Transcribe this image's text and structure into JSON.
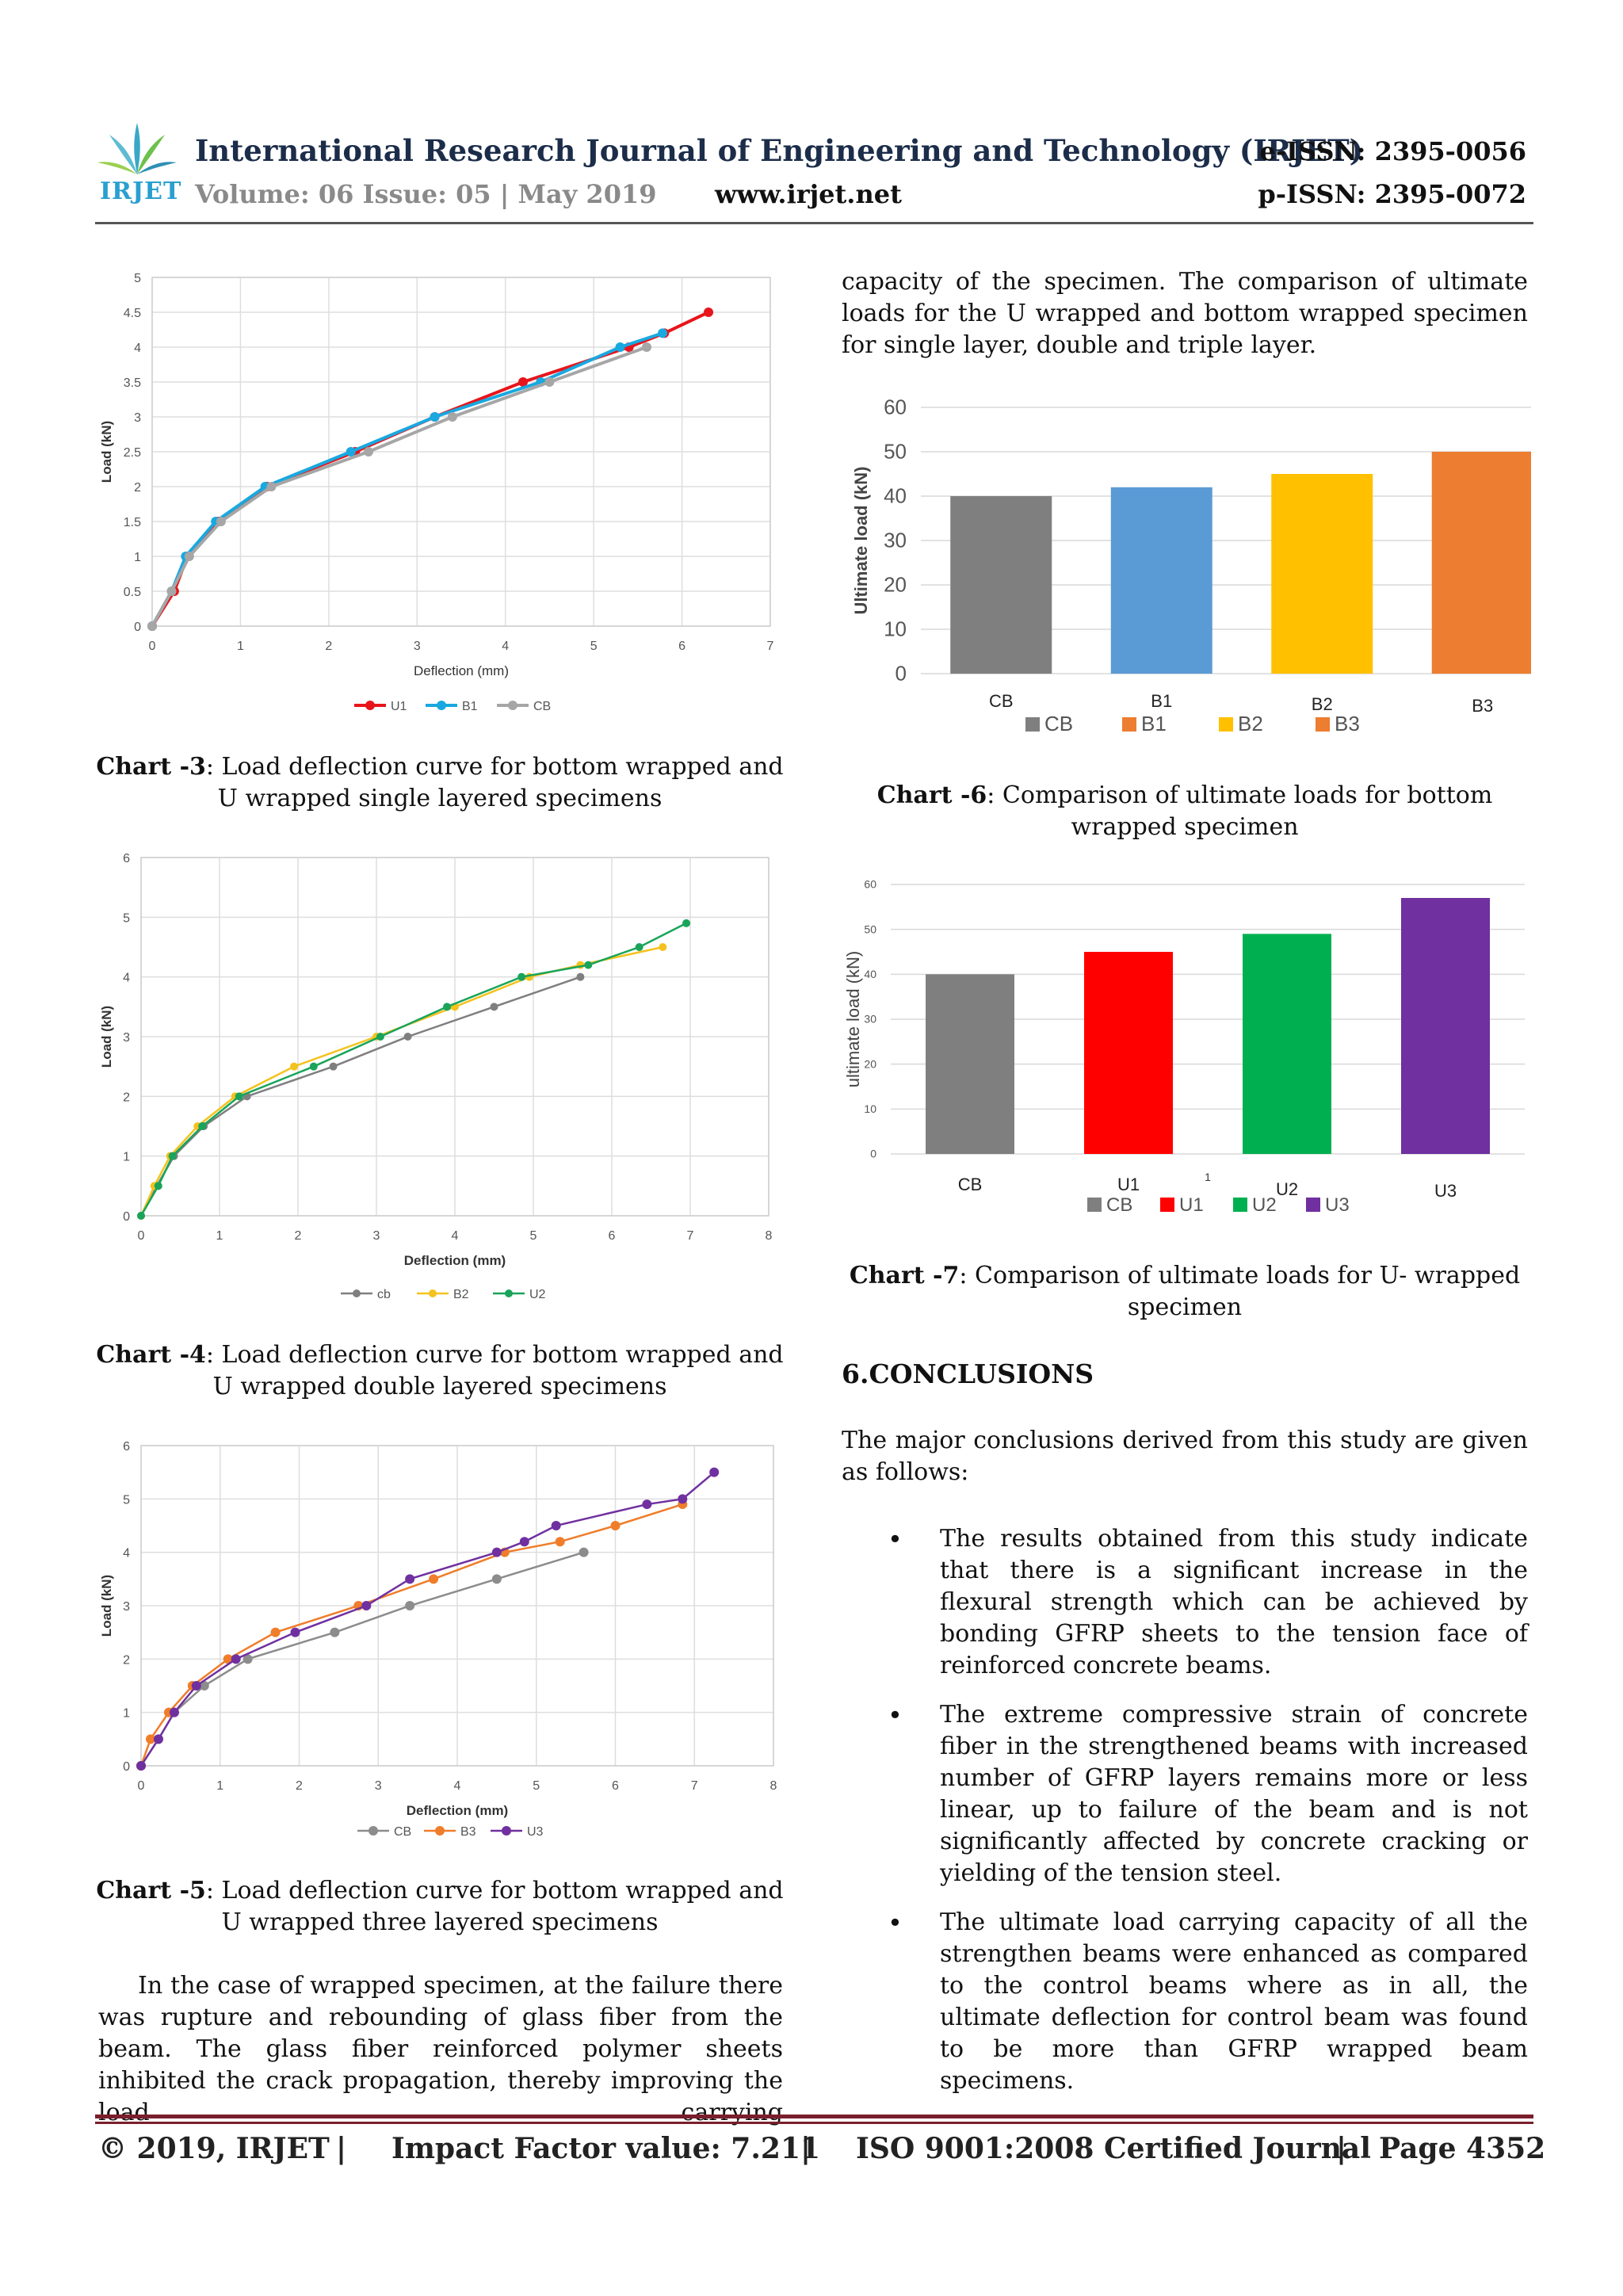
{
  "header": {
    "logo_text": "IRJET",
    "journal_title": "International Research Journal of Engineering and Technology (IRJET)",
    "volume": "Volume: 06 Issue: 05 | May 2019",
    "website": "www.irjet.net",
    "eissn": "e-ISSN: 2395-0056",
    "pissn": "p-ISSN: 2395-0072"
  },
  "captions": {
    "chart3_label": "Chart -3",
    "chart3_text": ": Load deflection curve for bottom wrapped and U wrapped single layered specimens",
    "chart4_label": "Chart -4",
    "chart4_text": ": Load deflection curve for bottom wrapped and U wrapped double layered specimens",
    "chart5_label": "Chart -5",
    "chart5_text": ": Load deflection curve for bottom wrapped and U wrapped three layered specimens",
    "chart6_label": "Chart -6",
    "chart6_text": ": Comparison of ultimate loads for bottom wrapped specimen",
    "chart7_label": "Chart -7",
    "chart7_text": ": Comparison of ultimate loads for U- wrapped specimen"
  },
  "body": {
    "left_para": "In the case of wrapped specimen, at the failure there was rupture and rebounding of glass fiber from the beam. The glass fiber reinforced polymer sheets inhibited the crack propagation, thereby improving the load carrying",
    "right_para": "capacity of the specimen. The comparison of ultimate loads for the U wrapped and bottom wrapped specimen for single layer, double and triple layer.",
    "section_title": "6.CONCLUSIONS",
    "conclusions_intro": "The major conclusions derived from this study are given as follows:",
    "bullets": [
      "The results obtained from this study indicate that there is a significant increase in the flexural strength which can be achieved by bonding GFRP sheets to the tension face of reinforced concrete beams.",
      "The extreme compressive strain of concrete fiber in the strengthened beams with increased number of GFRP layers remains more or less linear, up to failure of the beam and is not significantly affected by concrete cracking or yielding of the tension steel.",
      "The ultimate load carrying capacity of all the strengthen beams were enhanced as compared to the control beams where as in all, the ultimate deflection for control beam was found to be more than GFRP wrapped beam specimens."
    ]
  },
  "footer": {
    "copyright": "© 2019, IRJET",
    "sep1": "|",
    "impact": "Impact Factor value: 7.211",
    "sep2": "|",
    "iso": "ISO 9001:2008 Certified Journal",
    "sep3": "|",
    "page": "Page 4352"
  },
  "chart_data": [
    {
      "id": "chart3",
      "type": "line",
      "xlabel": "Deflection (mm)",
      "ylabel": "Load (kN)",
      "xlim": [
        0,
        7
      ],
      "ylim": [
        0,
        5
      ],
      "xticks": [
        "0",
        "1",
        "2",
        "3",
        "4",
        "5",
        "6",
        "7"
      ],
      "yticks": [
        "0",
        "0.5",
        "1",
        "1.5",
        "2",
        "2.5",
        "3",
        "3.5",
        "4",
        "4.5",
        "5"
      ],
      "grid": true,
      "legend_position": "bottom",
      "series": [
        {
          "name": "U1",
          "color": "#e8141b",
          "points": [
            [
              0,
              0
            ],
            [
              0.25,
              0.5
            ],
            [
              0.4,
              1
            ],
            [
              0.75,
              1.5
            ],
            [
              1.3,
              2
            ],
            [
              2.3,
              2.5
            ],
            [
              3.2,
              3
            ],
            [
              4.2,
              3.5
            ],
            [
              5.4,
              4
            ],
            [
              5.8,
              4.2
            ],
            [
              6.3,
              4.5
            ]
          ]
        },
        {
          "name": "B1",
          "color": "#19a8e0",
          "points": [
            [
              0,
              0
            ],
            [
              0.22,
              0.5
            ],
            [
              0.38,
              1
            ],
            [
              0.72,
              1.5
            ],
            [
              1.28,
              2
            ],
            [
              2.25,
              2.5
            ],
            [
              3.2,
              3
            ],
            [
              4.4,
              3.5
            ],
            [
              5.3,
              4
            ],
            [
              5.78,
              4.2
            ]
          ]
        },
        {
          "name": "CB",
          "color": "#a6a6a6",
          "points": [
            [
              0,
              0
            ],
            [
              0.22,
              0.5
            ],
            [
              0.42,
              1
            ],
            [
              0.78,
              1.5
            ],
            [
              1.35,
              2
            ],
            [
              2.45,
              2.5
            ],
            [
              3.4,
              3
            ],
            [
              4.5,
              3.5
            ],
            [
              5.6,
              4
            ]
          ]
        }
      ]
    },
    {
      "id": "chart4",
      "type": "line",
      "xlabel": "Deflection (mm)",
      "ylabel": "Load (kN)",
      "xlim": [
        0,
        8
      ],
      "ylim": [
        0,
        6
      ],
      "xticks": [
        "0",
        "1",
        "2",
        "3",
        "4",
        "5",
        "6",
        "7",
        "8"
      ],
      "yticks": [
        "0",
        "1",
        "2",
        "3",
        "4",
        "5",
        "6"
      ],
      "grid": true,
      "legend_position": "bottom",
      "series": [
        {
          "name": "cb",
          "color": "#7f7f7f",
          "points": [
            [
              0,
              0
            ],
            [
              0.2,
              0.5
            ],
            [
              0.42,
              1
            ],
            [
              0.8,
              1.5
            ],
            [
              1.35,
              2
            ],
            [
              2.45,
              2.5
            ],
            [
              3.4,
              3
            ],
            [
              4.5,
              3.5
            ],
            [
              5.6,
              4
            ]
          ]
        },
        {
          "name": "B2",
          "color": "#f4c21d",
          "points": [
            [
              0,
              0
            ],
            [
              0.17,
              0.5
            ],
            [
              0.37,
              1
            ],
            [
              0.72,
              1.5
            ],
            [
              1.2,
              2
            ],
            [
              1.95,
              2.5
            ],
            [
              3.0,
              3
            ],
            [
              4.0,
              3.5
            ],
            [
              4.95,
              4
            ],
            [
              5.6,
              4.2
            ],
            [
              6.65,
              4.5
            ]
          ]
        },
        {
          "name": "U2",
          "color": "#19a45a",
          "points": [
            [
              0,
              0
            ],
            [
              0.22,
              0.5
            ],
            [
              0.4,
              1
            ],
            [
              0.78,
              1.5
            ],
            [
              1.25,
              2
            ],
            [
              2.2,
              2.5
            ],
            [
              3.05,
              3
            ],
            [
              3.9,
              3.5
            ],
            [
              4.85,
              4
            ],
            [
              5.7,
              4.2
            ],
            [
              6.35,
              4.5
            ],
            [
              6.95,
              4.9
            ]
          ]
        }
      ]
    },
    {
      "id": "chart5",
      "type": "line",
      "xlabel": "Deflection (mm)",
      "ylabel": "Load (kN)",
      "xlim": [
        0,
        8
      ],
      "ylim": [
        0,
        6
      ],
      "xticks": [
        "0",
        "1",
        "2",
        "3",
        "4",
        "5",
        "6",
        "7",
        "8"
      ],
      "yticks": [
        "0",
        "1",
        "2",
        "3",
        "4",
        "5",
        "6"
      ],
      "grid": true,
      "legend_position": "bottom",
      "series": [
        {
          "name": "CB",
          "color": "#8c8c8c",
          "points": [
            [
              0,
              0
            ],
            [
              0.22,
              0.5
            ],
            [
              0.42,
              1
            ],
            [
              0.8,
              1.5
            ],
            [
              1.35,
              2
            ],
            [
              2.45,
              2.5
            ],
            [
              3.4,
              3
            ],
            [
              4.5,
              3.5
            ],
            [
              5.6,
              4
            ]
          ]
        },
        {
          "name": "B3",
          "color": "#ef7d2a",
          "points": [
            [
              0,
              0
            ],
            [
              0.12,
              0.5
            ],
            [
              0.35,
              1
            ],
            [
              0.65,
              1.5
            ],
            [
              1.1,
              2
            ],
            [
              1.7,
              2.5
            ],
            [
              2.75,
              3
            ],
            [
              3.7,
              3.5
            ],
            [
              4.6,
              4
            ],
            [
              5.3,
              4.2
            ],
            [
              6.0,
              4.5
            ],
            [
              6.85,
              4.9
            ]
          ]
        },
        {
          "name": "U3",
          "color": "#7030a0",
          "points": [
            [
              0,
              0
            ],
            [
              0.22,
              0.5
            ],
            [
              0.42,
              1
            ],
            [
              0.7,
              1.5
            ],
            [
              1.2,
              2
            ],
            [
              1.95,
              2.5
            ],
            [
              2.85,
              3
            ],
            [
              3.4,
              3.5
            ],
            [
              4.5,
              4
            ],
            [
              4.85,
              4.2
            ],
            [
              5.25,
              4.5
            ],
            [
              6.4,
              4.9
            ],
            [
              6.85,
              5
            ],
            [
              7.25,
              5.5
            ]
          ]
        }
      ]
    },
    {
      "id": "chart6",
      "type": "bar",
      "ylabel": "Ultimate load (kN)",
      "ylim": [
        0,
        60
      ],
      "yticks": [
        "0",
        "10",
        "20",
        "30",
        "40",
        "50",
        "60"
      ],
      "categories": [
        "CB",
        "B1",
        "B2",
        "B3"
      ],
      "values": [
        40,
        42,
        45,
        50
      ],
      "colors": [
        "#7f7f7f",
        "#5b9bd5",
        "#ffc000",
        "#ed7d31"
      ],
      "legend_position": "bottom",
      "legend": [
        {
          "name": "CB",
          "color": "#7f7f7f"
        },
        {
          "name": "B1",
          "color": "#ed7d31"
        },
        {
          "name": "B2",
          "color": "#ffc000"
        },
        {
          "name": "B3",
          "color": "#ed7d31"
        }
      ]
    },
    {
      "id": "chart7",
      "type": "bar",
      "ylabel": "ultimate load (kN)",
      "ylim": [
        0,
        60
      ],
      "yticks": [
        "0",
        "10",
        "20",
        "30",
        "40",
        "50",
        "60"
      ],
      "categories": [
        "CB",
        "U1",
        "U2",
        "U3"
      ],
      "values": [
        40,
        45,
        49,
        57
      ],
      "colors": [
        "#7f7f7f",
        "#ff0000",
        "#00b050",
        "#7030a0"
      ],
      "axis_note": "1",
      "legend_position": "bottom",
      "legend": [
        {
          "name": "CB",
          "color": "#7f7f7f"
        },
        {
          "name": "U1",
          "color": "#ff0000"
        },
        {
          "name": "U2",
          "color": "#00b050"
        },
        {
          "name": "U3",
          "color": "#7030a0"
        }
      ]
    }
  ]
}
